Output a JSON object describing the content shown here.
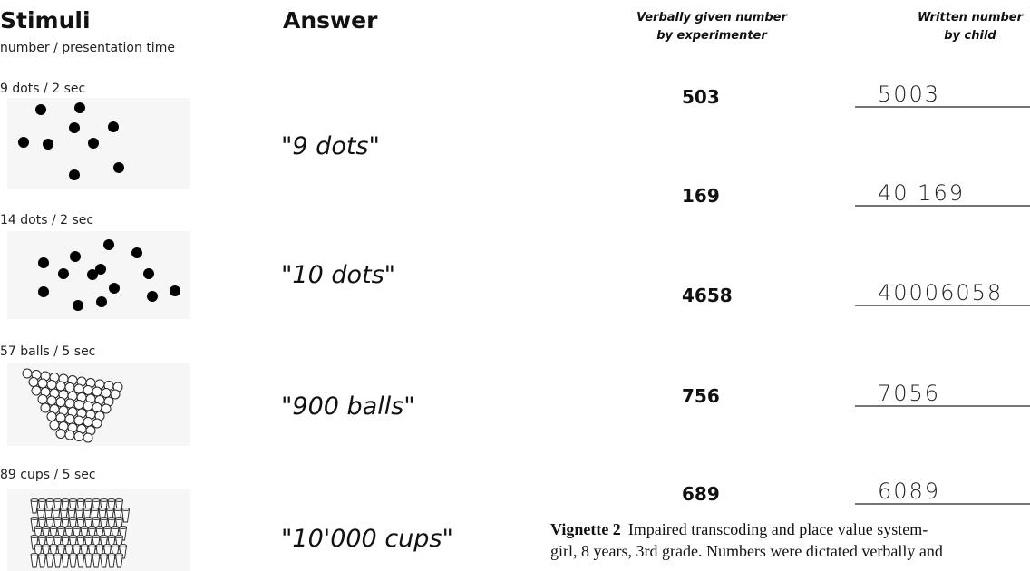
{
  "stimuli": {
    "title": "Stimuli",
    "subtitle": "number / presentation time",
    "items": [
      {
        "label": "9 dots / 2 sec",
        "answer": "\"9 dots\""
      },
      {
        "label": "14 dots / 2 sec",
        "answer": "\"10 dots\""
      },
      {
        "label": "57 balls / 5 sec",
        "answer": "\"900 balls\""
      },
      {
        "label": "89 cups / 5 sec",
        "answer": "\"10'000 cups\""
      }
    ]
  },
  "answer_header": "Answer",
  "transcoding": {
    "header_left": [
      "Verbally given number",
      "by experimenter"
    ],
    "header_right": [
      "Written number",
      "by child"
    ],
    "rows": [
      {
        "given": "503",
        "written": "5003"
      },
      {
        "given": "169",
        "written": "40 169"
      },
      {
        "given": "4658",
        "written": "40006058"
      },
      {
        "given": "756",
        "written": "7056"
      },
      {
        "given": "689",
        "written": "6089"
      }
    ]
  },
  "caption": {
    "label": "Vignette 2",
    "lines": [
      "Impaired transcoding and place value system-",
      "girl, 8 years, 3rd grade. Numbers were dictated verbally and"
    ]
  }
}
